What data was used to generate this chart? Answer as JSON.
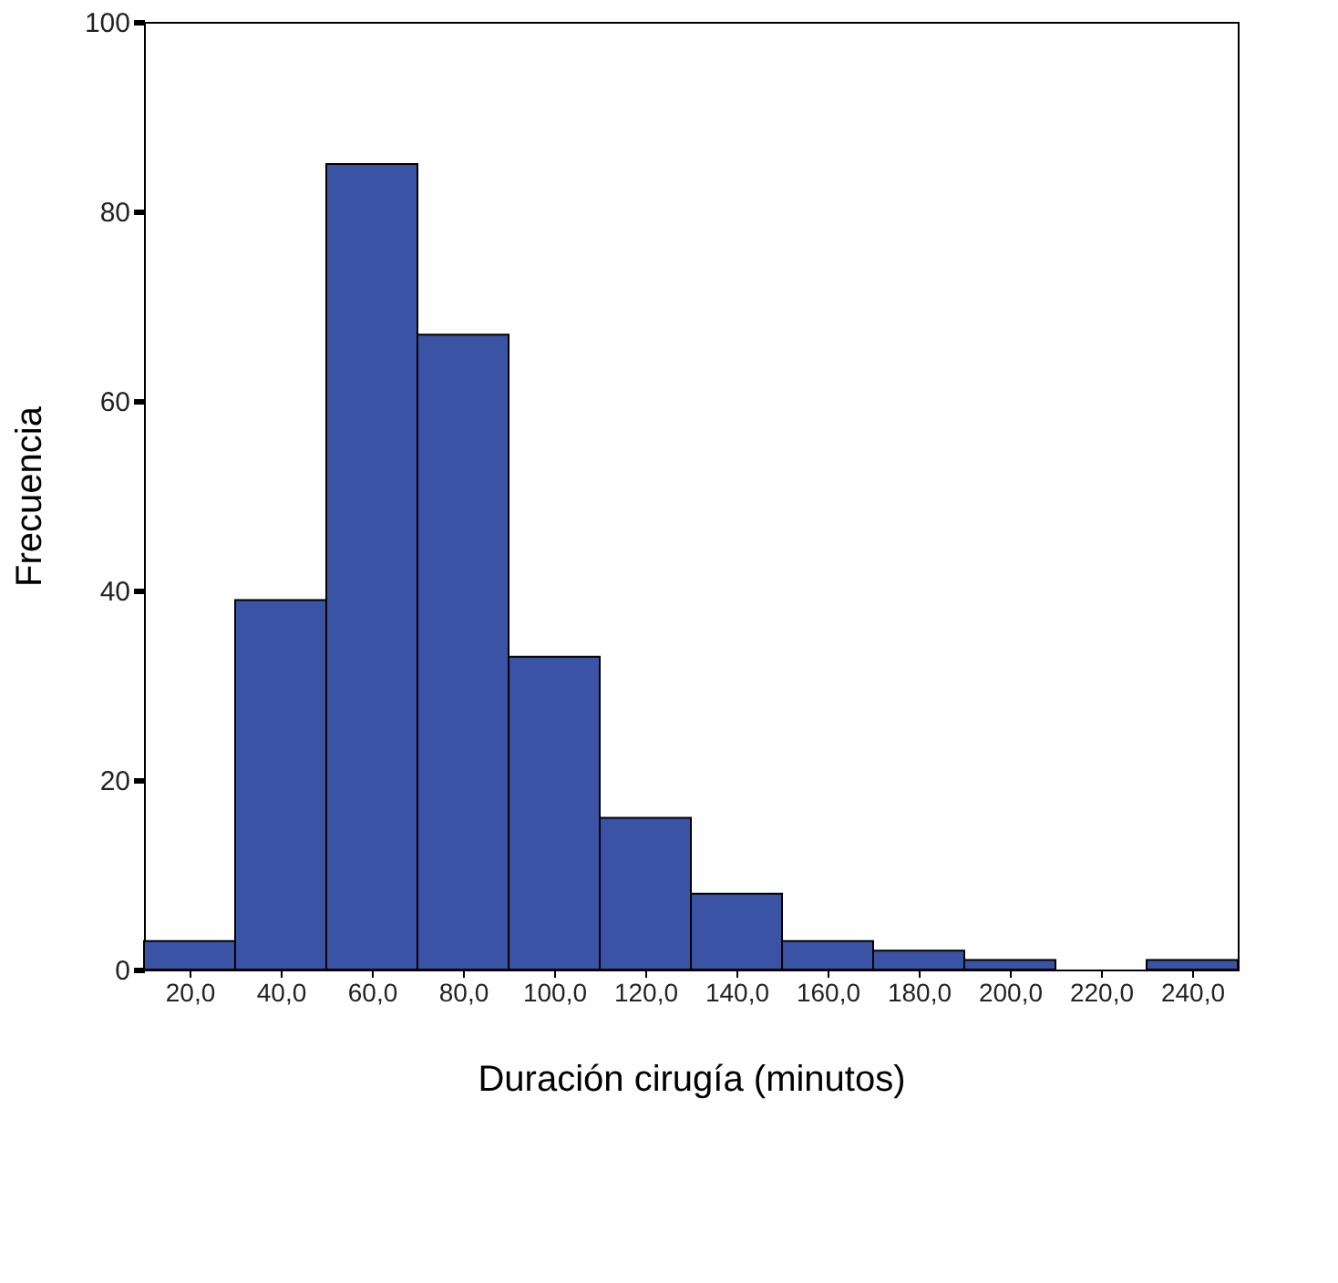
{
  "chart_data": {
    "type": "histogram",
    "xlabel": "Duración cirugía (minutos)",
    "ylabel": "Frecuencia",
    "bins": [
      10,
      30,
      50,
      70,
      90,
      110,
      130,
      150,
      170,
      190,
      210,
      230,
      250
    ],
    "values": [
      3,
      39,
      85,
      67,
      33,
      16,
      8,
      3,
      2,
      1,
      0,
      1
    ],
    "color": "#3a53a4",
    "xlim": [
      10,
      250
    ],
    "xticks": [
      {
        "value": 20,
        "label": "20,0"
      },
      {
        "value": 40,
        "label": "40,0"
      },
      {
        "value": 60,
        "label": "60,0"
      },
      {
        "value": 80,
        "label": "80,0"
      },
      {
        "value": 100,
        "label": "100,0"
      },
      {
        "value": 120,
        "label": "120,0"
      },
      {
        "value": 140,
        "label": "140,0"
      },
      {
        "value": 160,
        "label": "160,0"
      },
      {
        "value": 180,
        "label": "180,0"
      },
      {
        "value": 200,
        "label": "200,0"
      },
      {
        "value": 220,
        "label": "220,0"
      },
      {
        "value": 240,
        "label": "240,0"
      }
    ],
    "ylim": [
      0,
      100
    ],
    "yticks": [
      0,
      20,
      40,
      60,
      80,
      100
    ],
    "grid": false
  }
}
